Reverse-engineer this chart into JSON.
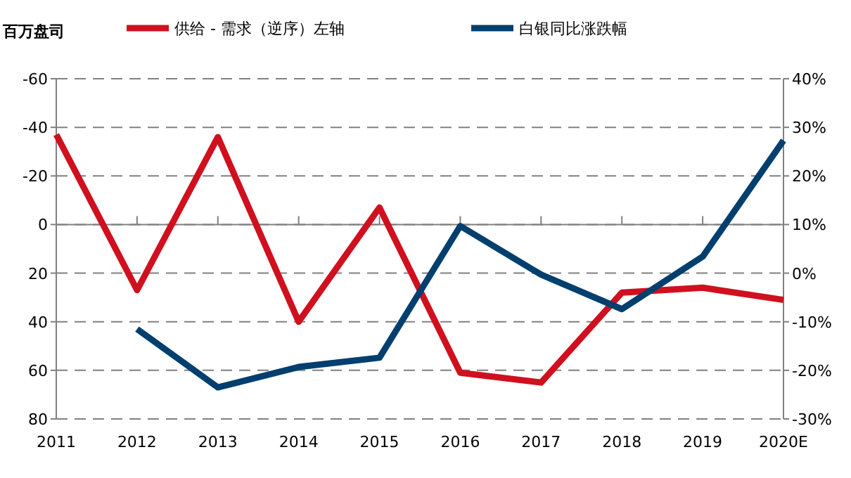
{
  "chart_data": {
    "type": "line",
    "ylabel": "百万盘司",
    "categories": [
      "2011",
      "2012",
      "2013",
      "2014",
      "2015",
      "2016",
      "2017",
      "2018",
      "2019",
      "2020E"
    ],
    "series": [
      {
        "name": "供给 - 需求（逆序）左轴",
        "color": "#d0101e",
        "values": [
          -37,
          27,
          -36,
          40,
          -7,
          61,
          65,
          28,
          26,
          31
        ]
      },
      {
        "name": "白银同比涨跌幅",
        "color": "#003f6e",
        "axis": "y2",
        "values": [
          null,
          -11.5,
          -23.5,
          -19.3,
          -17.4,
          9.7,
          -0.3,
          -7.4,
          3.4,
          27.3
        ]
      }
    ],
    "ylim": [
      80,
      -60
    ],
    "yticks": [
      -60,
      -40,
      -20,
      0,
      20,
      40,
      60,
      80
    ],
    "y2lim": [
      -30,
      40
    ],
    "y2ticks": [
      {
        "value": 40,
        "label": "40%"
      },
      {
        "value": 30,
        "label": "30%"
      },
      {
        "value": 20,
        "label": "20%"
      },
      {
        "value": 10,
        "label": "10%"
      },
      {
        "value": 0,
        "label": "0%"
      },
      {
        "value": -10,
        "label": "-10%"
      },
      {
        "value": -20,
        "label": "-20%"
      },
      {
        "value": -30,
        "label": "-30%"
      }
    ],
    "grid": "y",
    "legend": "top",
    "line_style": "solid"
  }
}
